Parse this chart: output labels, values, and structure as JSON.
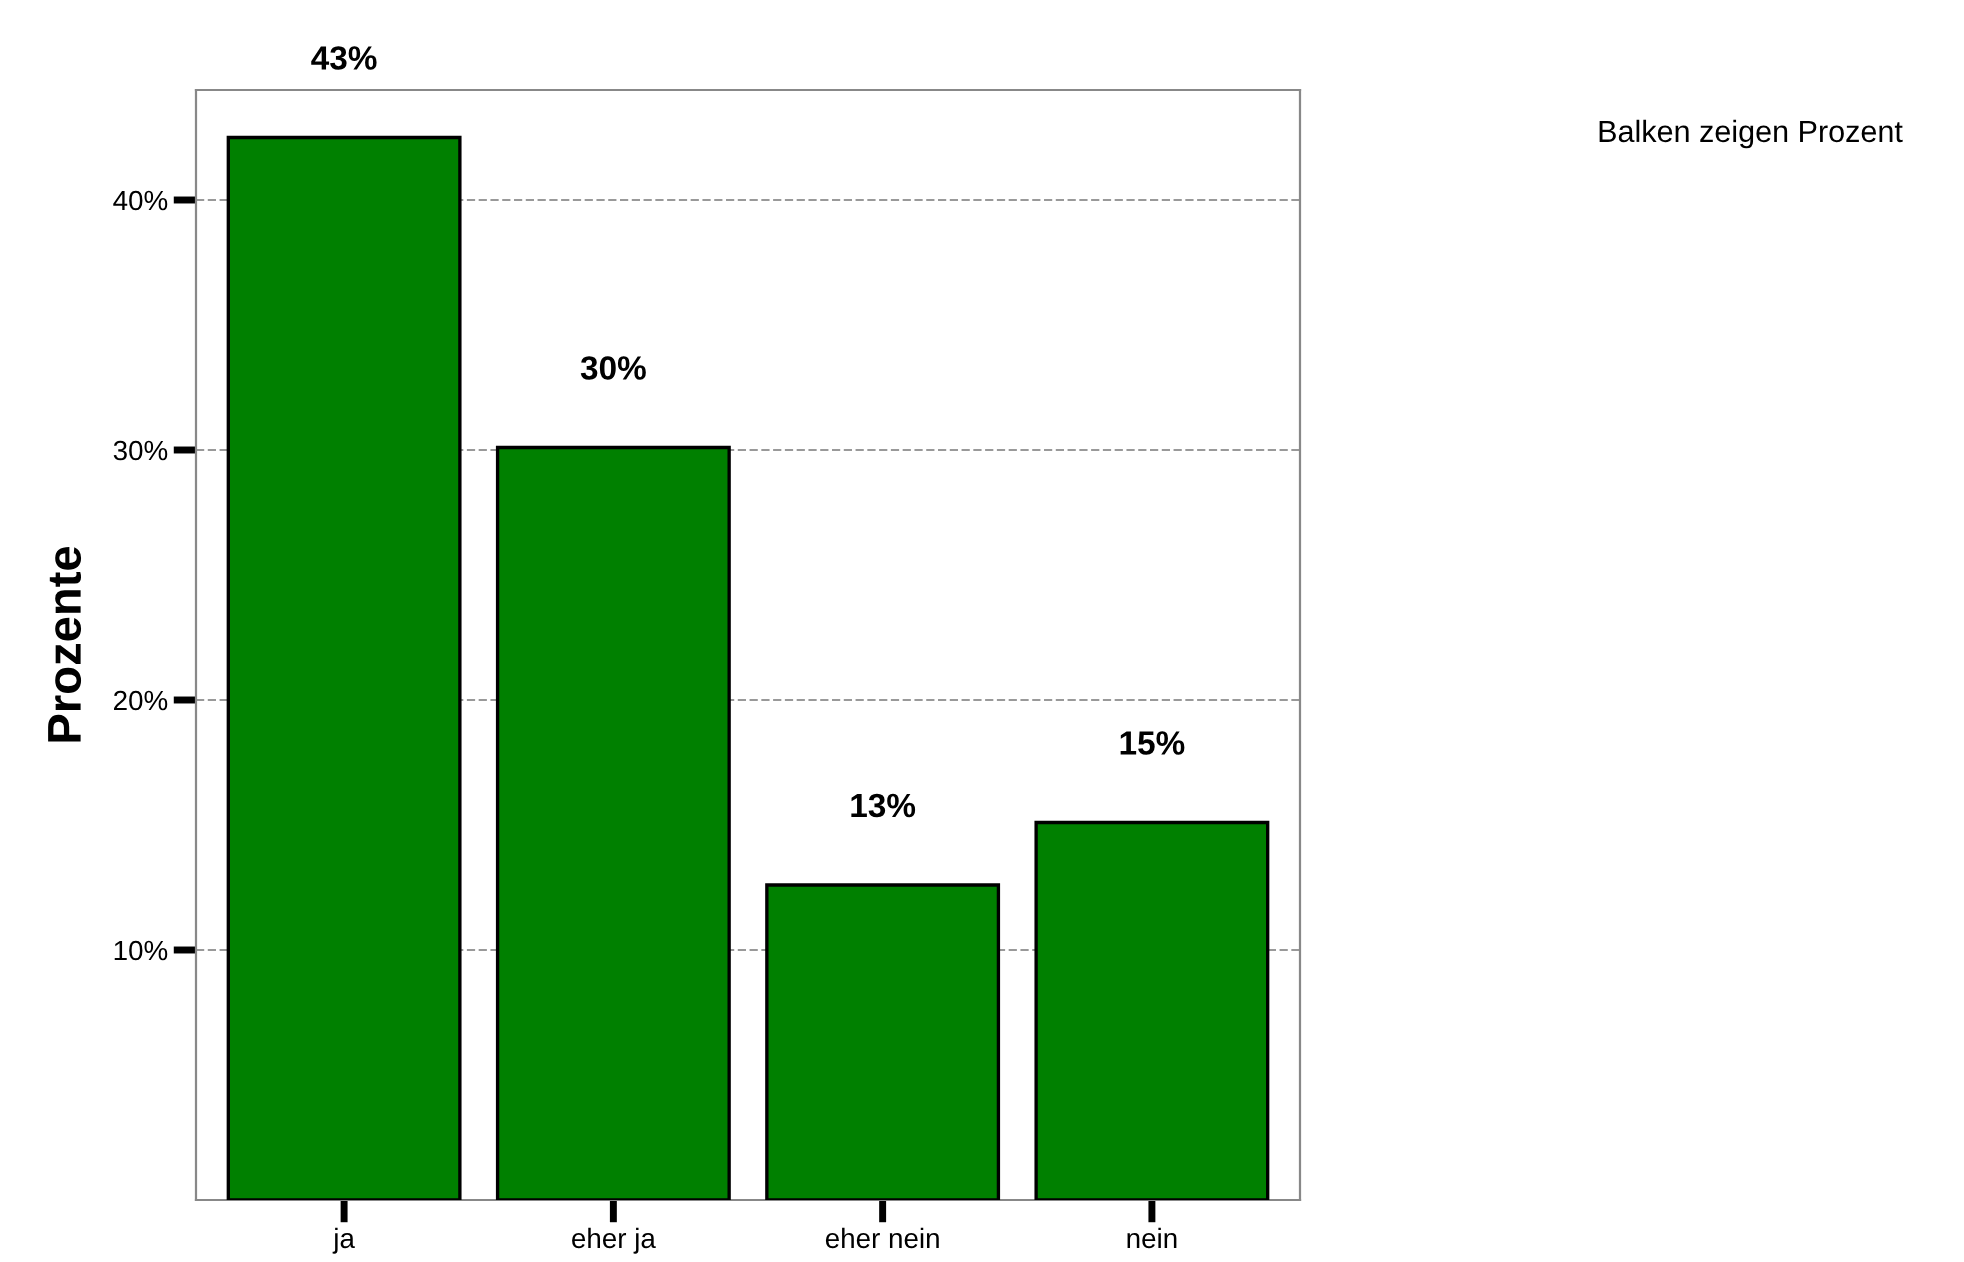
{
  "chart_data": {
    "type": "bar",
    "ylabel": "Prozente",
    "categories": [
      "ja",
      "eher ja",
      "eher nein",
      "nein"
    ],
    "values": [
      42.5,
      30.1,
      12.6,
      15.1
    ],
    "value_labels": [
      "43%",
      "30%",
      "13%",
      "15%"
    ],
    "color": "#008000",
    "ylim": [
      0,
      44.4
    ],
    "yticks": [
      {
        "value": 10,
        "label": "10%"
      },
      {
        "value": 20,
        "label": "20%"
      },
      {
        "value": 30,
        "label": "30%"
      },
      {
        "value": 40,
        "label": "40%"
      }
    ],
    "grid": "y",
    "annotations": [
      "Balken zeigen Prozent"
    ]
  }
}
